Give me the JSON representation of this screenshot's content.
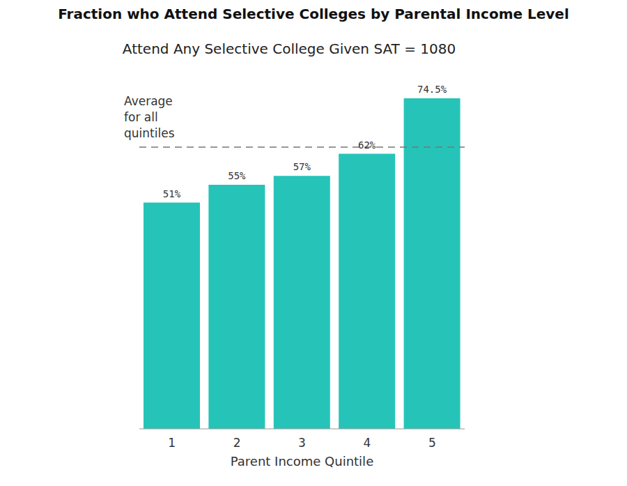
{
  "chart_data": {
    "type": "bar",
    "title": "Fraction who Attend Selective Colleges by Parental Income Level",
    "subtitle": "Attend Any Selective College Given SAT = 1080",
    "x_label": "Parent Income Quintile",
    "categories": [
      "1",
      "2",
      "3",
      "4",
      "5"
    ],
    "values": [
      51,
      55,
      57,
      62,
      74.5
    ],
    "value_labels": [
      "51%",
      "55%",
      "57%",
      "62%",
      "74.5%"
    ],
    "color": "#26c4b8",
    "data_labels": true,
    "tick_labels": "x",
    "grid": false,
    "annotations": [
      {
        "text": "Average\nfor all\nquintiles",
        "y": 63.5,
        "line_style": "dashed"
      }
    ]
  }
}
